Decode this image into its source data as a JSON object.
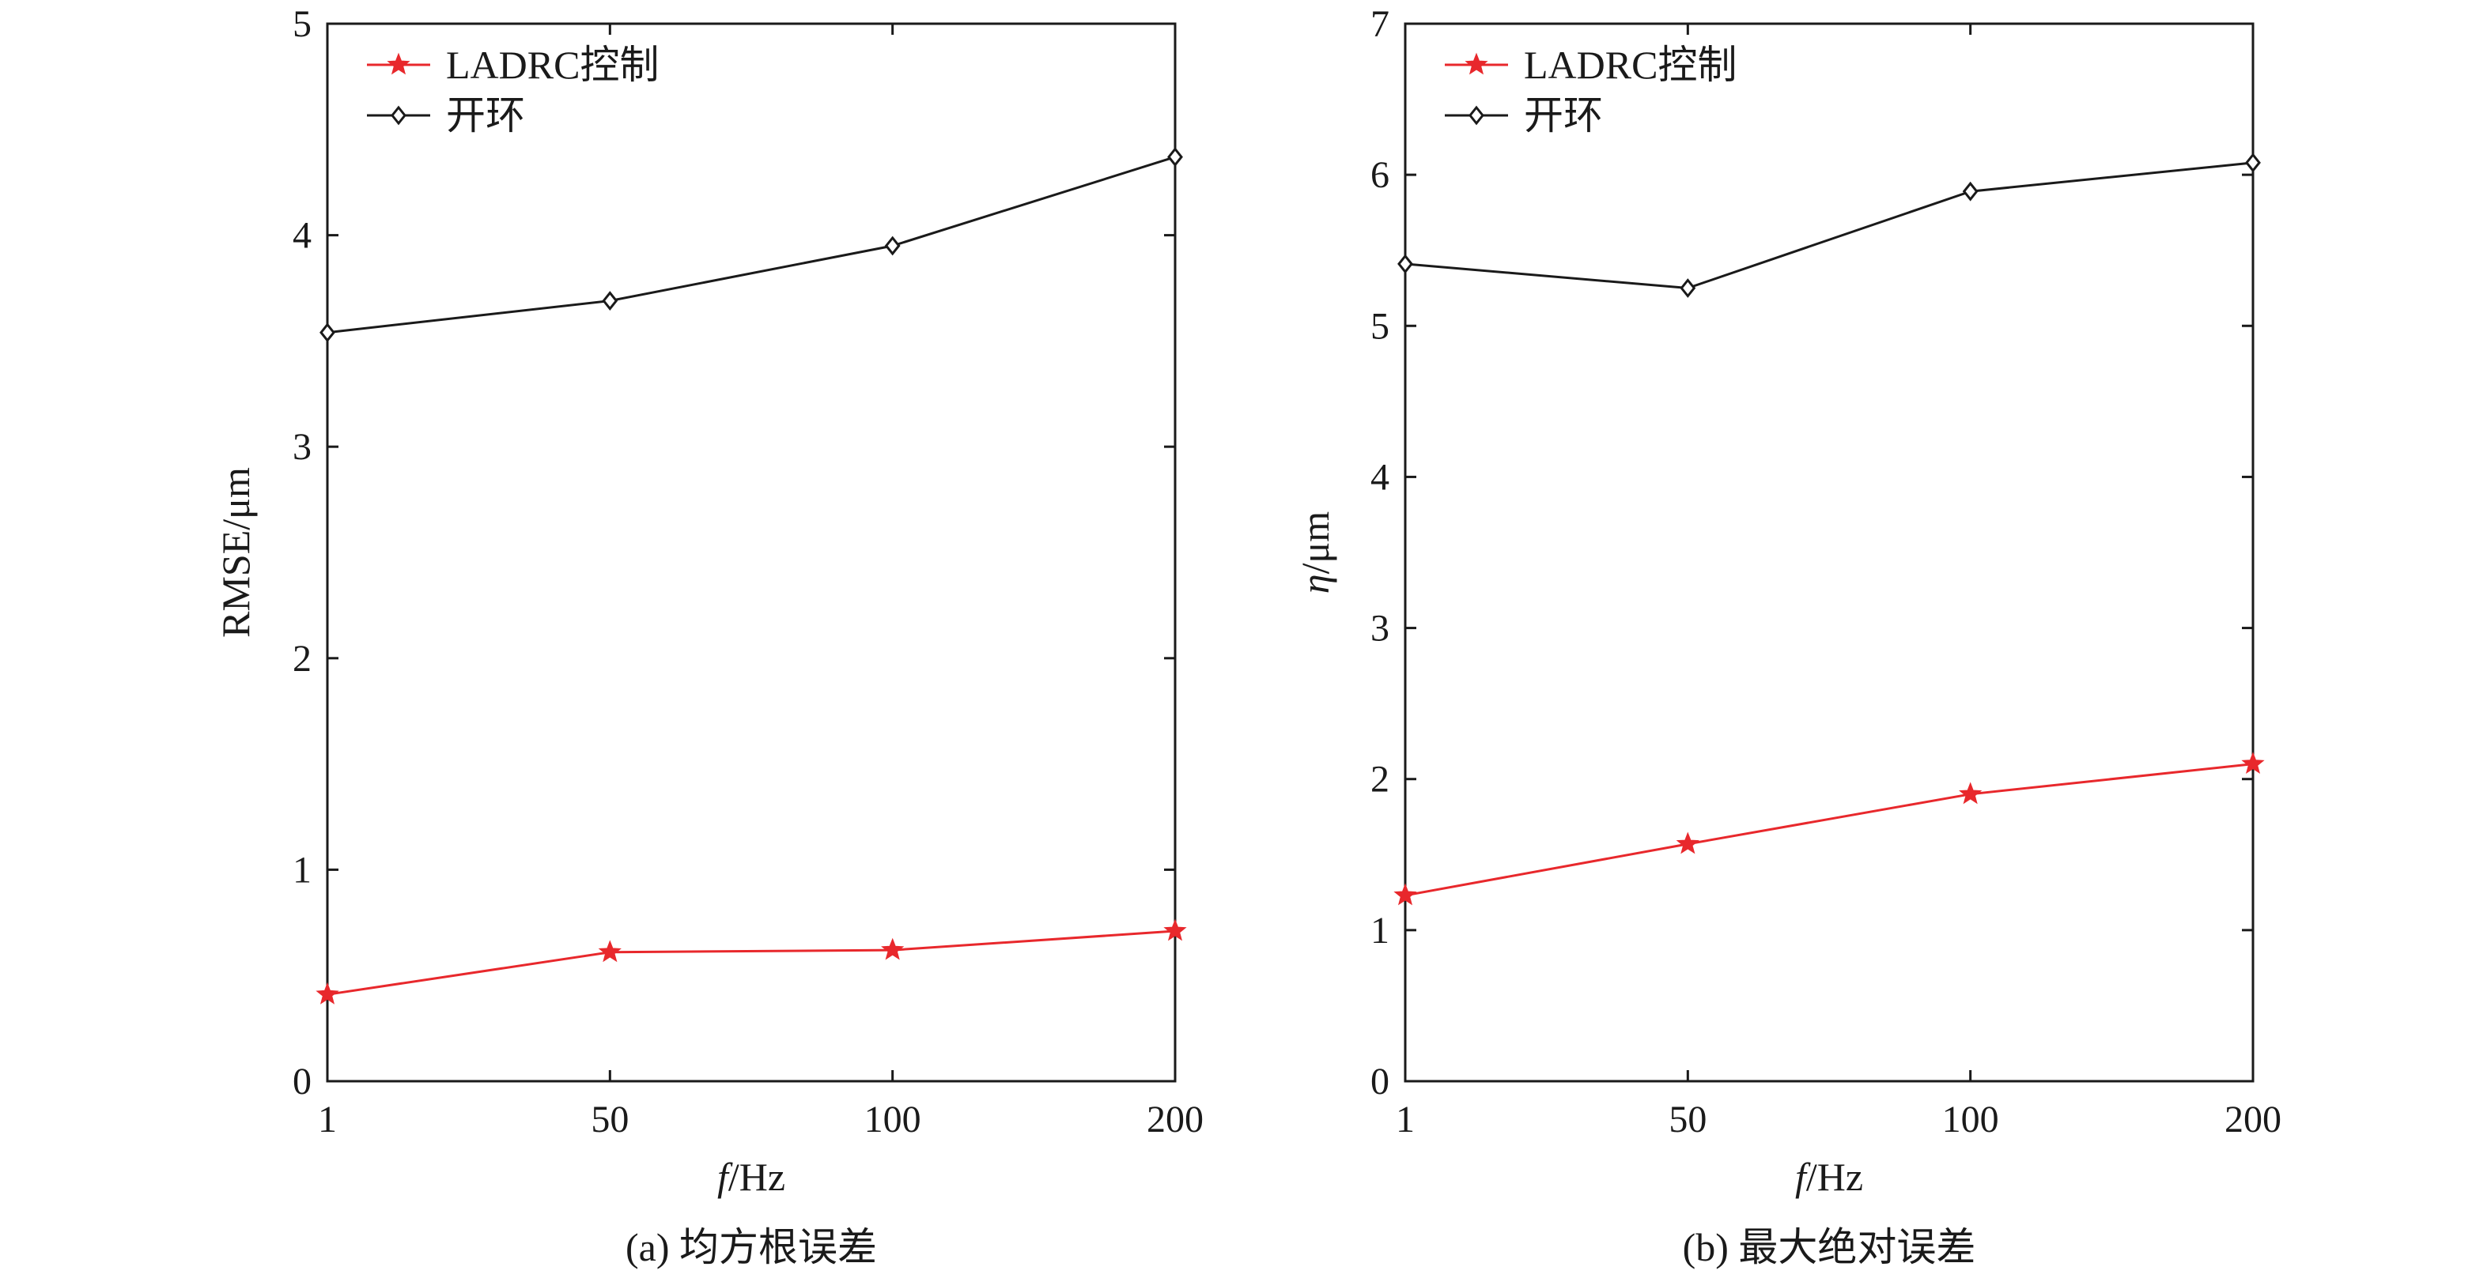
{
  "chart_data": [
    {
      "type": "line",
      "caption": "(a) 均方根误差",
      "xlabel_italic": "f",
      "xlabel_unit": "/Hz",
      "ylabel": "RMSE/μm",
      "categories": [
        "1",
        "50",
        "100",
        "200"
      ],
      "ylim": [
        0,
        5
      ],
      "yticks": [
        "0",
        "1",
        "2",
        "3",
        "4",
        "5"
      ],
      "legend_position": "top-left",
      "series": [
        {
          "name": "LADRC控制",
          "color": "#e8282c",
          "marker": "star",
          "values": [
            0.41,
            0.61,
            0.62,
            0.71
          ]
        },
        {
          "name": "开环",
          "color": "#1a1a1a",
          "marker": "diamond",
          "values": [
            3.54,
            3.69,
            3.95,
            4.37
          ]
        }
      ]
    },
    {
      "type": "line",
      "caption": "(b) 最大绝对误差",
      "xlabel_italic": "f",
      "xlabel_unit": "/Hz",
      "ylabel_italic": "η",
      "ylabel_unit": "/μm",
      "categories": [
        "1",
        "50",
        "100",
        "200"
      ],
      "ylim": [
        0,
        7
      ],
      "yticks": [
        "0",
        "1",
        "2",
        "3",
        "4",
        "5",
        "6",
        "7"
      ],
      "legend_position": "top-left",
      "series": [
        {
          "name": "LADRC控制",
          "color": "#e8282c",
          "marker": "star",
          "values": [
            1.23,
            1.57,
            1.9,
            2.1
          ]
        },
        {
          "name": "开环",
          "color": "#1a1a1a",
          "marker": "diamond",
          "values": [
            5.41,
            5.25,
            5.89,
            6.08
          ]
        }
      ]
    }
  ]
}
